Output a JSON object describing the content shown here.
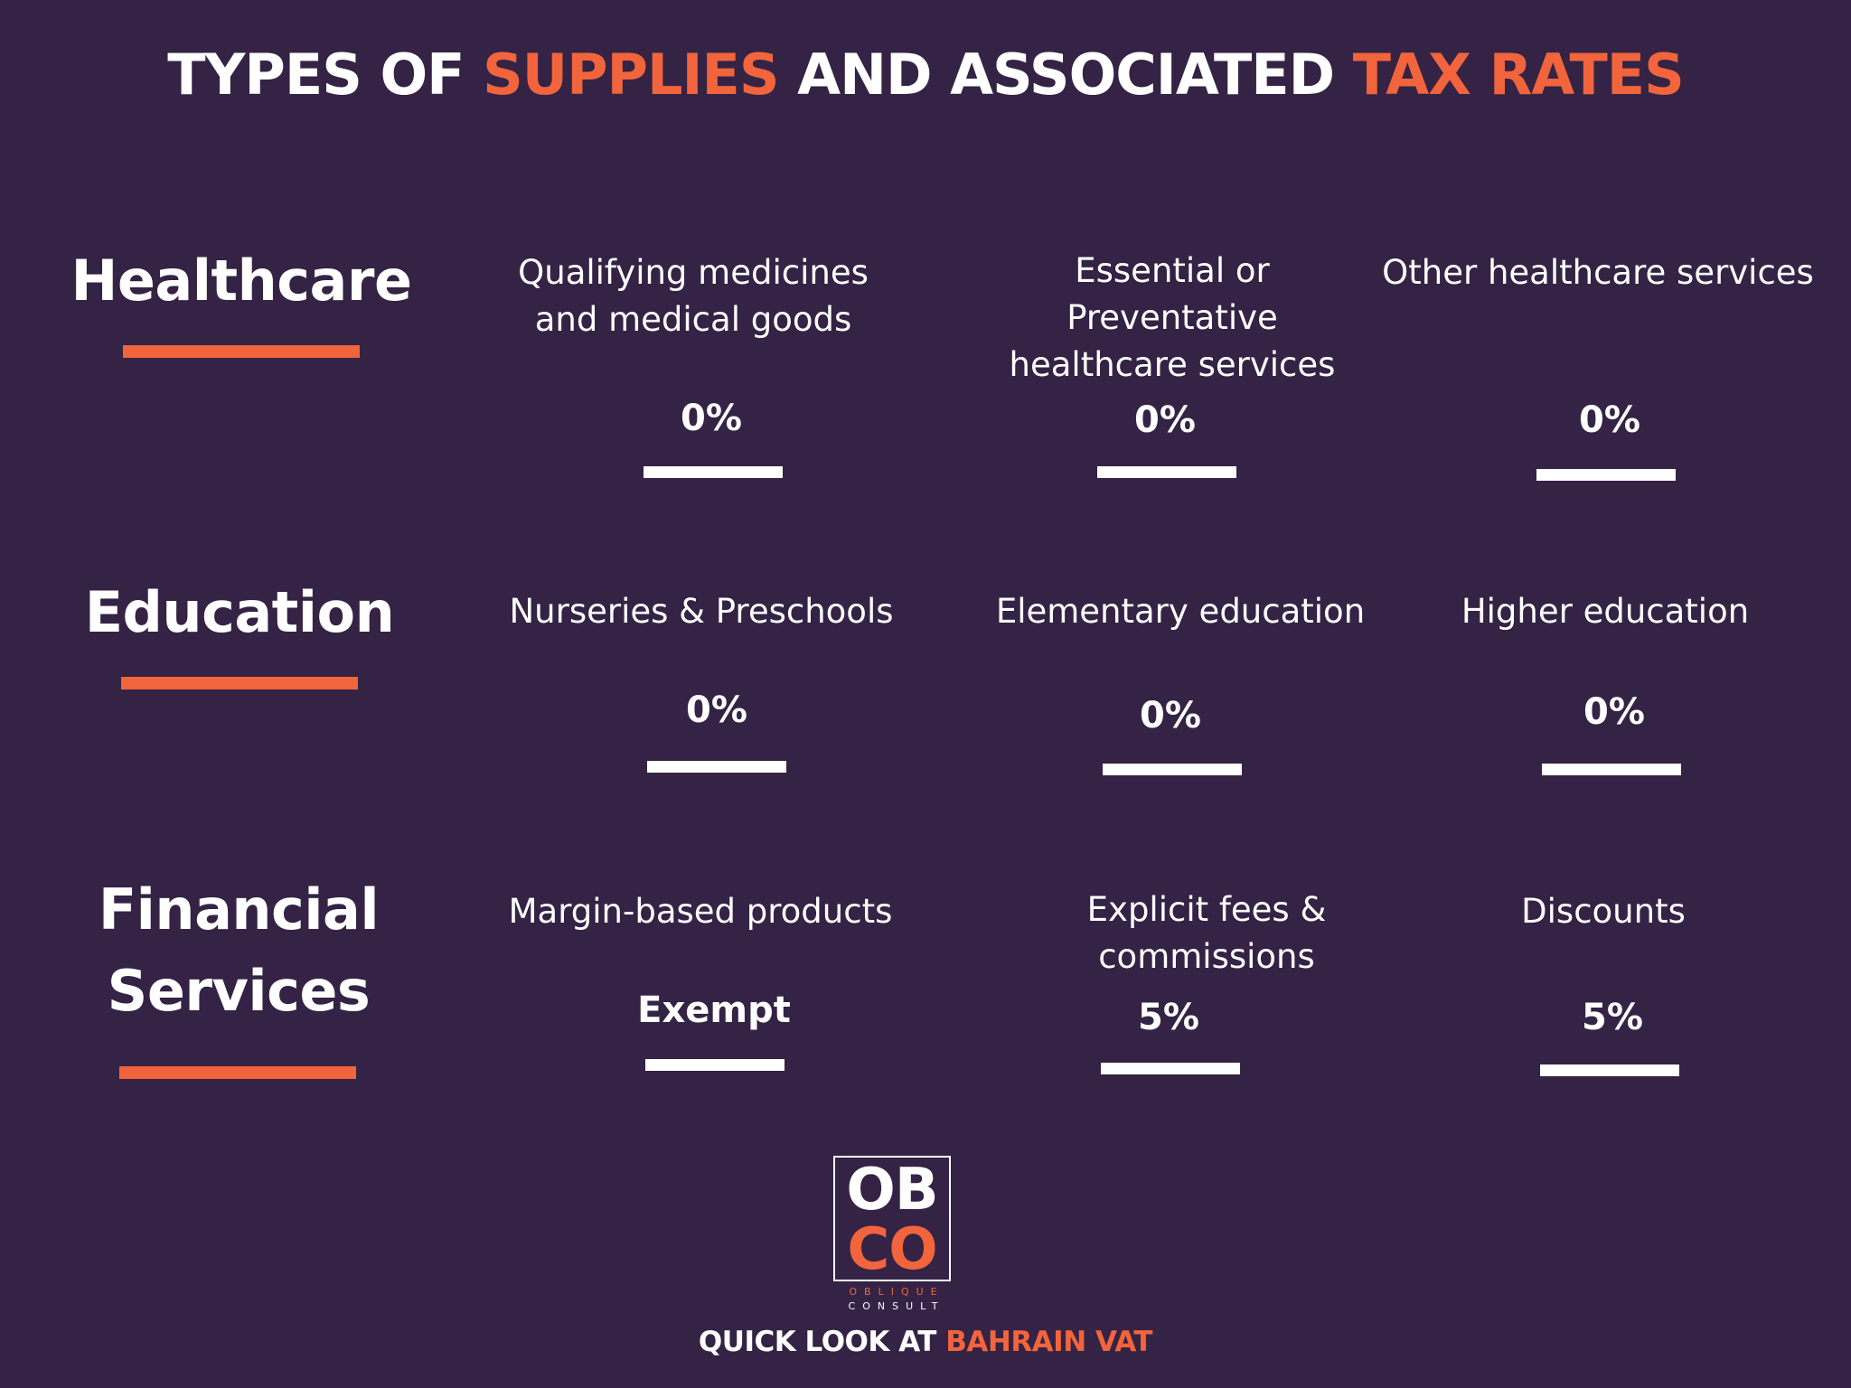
{
  "title": {
    "part1": "TYPES OF ",
    "part2": "SUPPLIES",
    "part3": " AND ASSOCIATED ",
    "part4": "TAX RATES"
  },
  "categories": [
    {
      "name_lines": [
        "Healthcare"
      ],
      "supplies": [
        {
          "label": "Qualifying medicines and medical goods",
          "rate": "0%"
        },
        {
          "label": "Essential or Preventative healthcare services",
          "rate": "0%"
        },
        {
          "label": "Other healthcare services",
          "rate": "0%"
        }
      ]
    },
    {
      "name_lines": [
        "Education"
      ],
      "supplies": [
        {
          "label": "Nurseries & Preschools",
          "rate": "0%"
        },
        {
          "label": "Elementary education",
          "rate": "0%"
        },
        {
          "label": "Higher education",
          "rate": "0%"
        }
      ]
    },
    {
      "name_lines": [
        "Financial",
        "Services"
      ],
      "supplies": [
        {
          "label": "Margin-based products",
          "rate": "Exempt"
        },
        {
          "label": "Explicit fees & commissions",
          "rate": "5%"
        },
        {
          "label": "Discounts",
          "rate": "5%"
        }
      ]
    }
  ],
  "logo": {
    "row1": "OB",
    "row2": "CO",
    "sub1": "OBLIQUE",
    "sub2": "CONSULT"
  },
  "footer": {
    "part1": "QUICK LOOK AT ",
    "part2": "BAHRAIN VAT"
  },
  "colors": {
    "background": "#342345",
    "accent": "#f2643c",
    "text": "#ffffff"
  }
}
